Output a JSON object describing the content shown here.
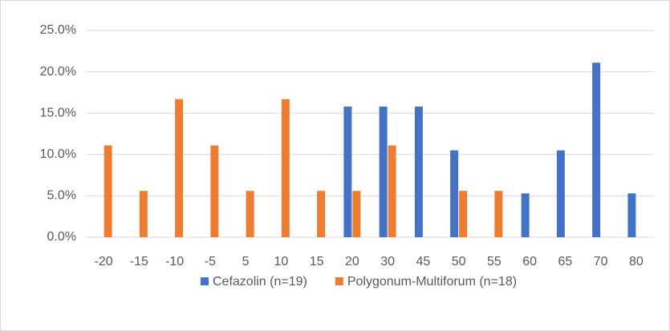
{
  "chart_data": {
    "type": "bar",
    "categories": [
      "-20",
      "-15",
      "-10",
      "-5",
      "5",
      "10",
      "15",
      "20",
      "30",
      "45",
      "50",
      "55",
      "60",
      "65",
      "70",
      "80"
    ],
    "series": [
      {
        "name": "Cefazolin (n=19)",
        "color": "#4472c4",
        "values": [
          0,
          0,
          0,
          0,
          0,
          0,
          0,
          15.8,
          15.8,
          15.8,
          10.5,
          0,
          5.3,
          10.5,
          21.1,
          5.3
        ]
      },
      {
        "name": "Polygonum-Multiforum (n=18)",
        "color": "#ed7d31",
        "values": [
          11.1,
          5.6,
          16.7,
          11.1,
          5.6,
          16.7,
          5.6,
          5.6,
          11.1,
          0,
          5.6,
          5.6,
          0,
          0,
          0,
          0
        ]
      }
    ],
    "ylim": [
      0,
      25
    ],
    "yticks": [
      {
        "value": 0,
        "label": "0.0%"
      },
      {
        "value": 5,
        "label": "5.0%"
      },
      {
        "value": 10,
        "label": "10.0%"
      },
      {
        "value": 15,
        "label": "15.0%"
      },
      {
        "value": 20,
        "label": "20.0%"
      },
      {
        "value": 25,
        "label": "25.0%"
      }
    ],
    "grid": true,
    "legend": "bottom"
  }
}
